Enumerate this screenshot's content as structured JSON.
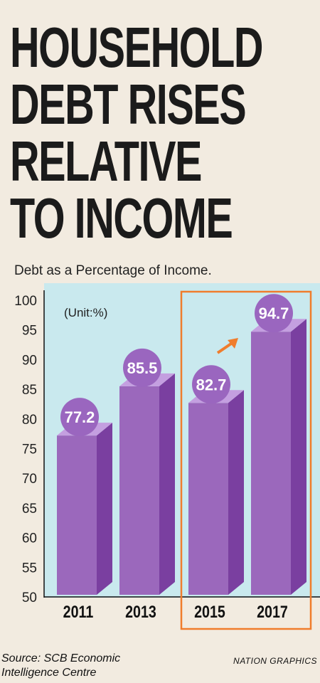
{
  "title_lines": [
    "HOUSEHOLD",
    "DEBT RISES",
    "RELATIVE",
    "TO INCOME"
  ],
  "subtitle": "Debt as a Percentage of Income.",
  "unit_label": "(Unit:%)",
  "source": [
    "Source: SCB Economic",
    "Intelligence Centre"
  ],
  "credit": "NATION GRAPHICS",
  "colors": {
    "panel": "#c9e9ee",
    "bar_front": "#9b68bc",
    "bar_side": "#7a3fa0",
    "bar_top": "#c49fe0",
    "badge": "#9a66bf",
    "highlight": "#f07d2c",
    "background": "#f2ebe0"
  },
  "chart_data": {
    "type": "bar",
    "categories": [
      "2011",
      "2013",
      "2015",
      "2017"
    ],
    "values": [
      77.2,
      85.5,
      82.7,
      94.7
    ],
    "data_labels": [
      "77.2",
      "85.5",
      "82.7",
      "94.7"
    ],
    "y_ticks": [
      "100",
      "95",
      "90",
      "85",
      "80",
      "75",
      "70",
      "65",
      "60",
      "55",
      "50"
    ],
    "ylim": [
      50,
      100
    ],
    "highlighted_categories": [
      "2015",
      "2017"
    ],
    "grid": false
  }
}
